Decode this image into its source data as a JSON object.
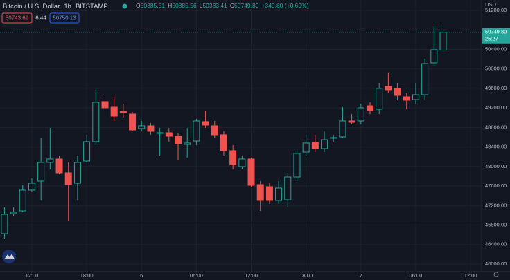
{
  "header": {
    "symbol": "Bitcoin / U.S. Dollar",
    "interval": "1h",
    "exchange": "BITSTAMP",
    "ohlc": [
      {
        "key": "O",
        "value": "50385.51"
      },
      {
        "key": "H",
        "value": "50885.56"
      },
      {
        "key": "L",
        "value": "50383.41"
      },
      {
        "key": "C",
        "value": "50749.80"
      }
    ],
    "change": "+349.80 (+0.69%)",
    "sell": "50743.69",
    "spread": "6.44",
    "buy": "50750.13"
  },
  "chart_data": {
    "type": "candlestick",
    "categories": [
      null,
      null,
      null,
      "12:00",
      null,
      null,
      null,
      null,
      null,
      "18:00",
      null,
      null,
      null,
      null,
      null,
      "6",
      null,
      null,
      null,
      null,
      null,
      "06:00",
      null,
      null,
      null,
      null,
      null,
      "12:00",
      null,
      null,
      null,
      null,
      null,
      "18:00",
      null,
      null,
      null,
      null,
      null,
      "7",
      null,
      null,
      null,
      null,
      null,
      "06:00",
      null,
      null,
      null,
      null,
      null,
      "12:00"
    ],
    "open": [
      46623,
      47034,
      47091,
      47516,
      47700,
      48083,
      48154,
      47870,
      47658,
      48111,
      48508,
      49330,
      49216,
      49131,
      49075,
      48777,
      48834,
      48678,
      48692,
      48621,
      48451,
      48522,
      48919,
      48834,
      48650,
      48324,
      47998,
      48154,
      47629,
      47587,
      47304,
      47318,
      47785,
      48295,
      48494,
      48366,
      48579,
      48607,
      48933,
      48933,
      49245,
      49174,
      49641,
      49599,
      49429,
      49372,
      49471,
      50123,
      50385.51,
      null,
      null,
      null
    ],
    "high": [
      47162,
      47162,
      47615,
      47757,
      48579,
      48791,
      48224,
      48083,
      48224,
      48650,
      49571,
      49471,
      49429,
      49287,
      49117,
      48933,
      48890,
      48791,
      48791,
      48678,
      48791,
      48975,
      49145,
      48933,
      48720,
      48437,
      48224,
      48182,
      47700,
      47658,
      47700,
      47870,
      48324,
      48650,
      48650,
      48720,
      48650,
      49216,
      49075,
      49287,
      49316,
      49712,
      49925,
      49712,
      49500,
      49712,
      50208,
      50874,
      50885.56,
      null,
      null,
      null
    ],
    "low": [
      46524,
      46992,
      47063,
      47474,
      47304,
      47941,
      47842,
      46878,
      47304,
      48083,
      48437,
      49145,
      48933,
      49004,
      48720,
      48720,
      48650,
      48224,
      48508,
      48125,
      48182,
      48437,
      48791,
      48579,
      48224,
      47941,
      47941,
      47587,
      47091,
      47233,
      47233,
      47162,
      47700,
      48224,
      48295,
      48295,
      48508,
      48579,
      48862,
      48862,
      49075,
      49075,
      49500,
      49358,
      49174,
      49287,
      49358,
      50066,
      50383.41,
      null,
      null,
      null
    ],
    "close": [
      47020,
      47063,
      47516,
      47658,
      48083,
      48154,
      47870,
      47629,
      48083,
      48508,
      49316,
      49202,
      49032,
      49103,
      48749,
      48834,
      48720,
      48692,
      48621,
      48465,
      48480,
      48933,
      48848,
      48650,
      48324,
      48040,
      48154,
      47615,
      47304,
      47304,
      47559,
      47785,
      48267,
      48480,
      48366,
      48550,
      48593,
      48933,
      48905,
      49202,
      49145,
      49599,
      49571,
      49457,
      49358,
      49471,
      50109,
      50392,
      50749.8,
      null,
      null,
      null
    ],
    "up_color": "#26a69a",
    "down_color": "#ef5350",
    "ylim": [
      45844,
      51412
    ],
    "yticks": [
      {
        "value": 46000,
        "label": "46000.00"
      },
      {
        "value": 46400,
        "label": "46400.00"
      },
      {
        "value": 46800,
        "label": "46800.00"
      },
      {
        "value": 47200,
        "label": "47200.00"
      },
      {
        "value": 47600,
        "label": "47600.00"
      },
      {
        "value": 48000,
        "label": "48000.00"
      },
      {
        "value": 48400,
        "label": "48400.00"
      },
      {
        "value": 48800,
        "label": "48800.00"
      },
      {
        "value": 49200,
        "label": "49200.00"
      },
      {
        "value": 49600,
        "label": "49600.00"
      },
      {
        "value": 50000,
        "label": "50000.00"
      },
      {
        "value": 50400,
        "label": "50400.00"
      },
      {
        "value": 50800,
        "label": "50800.00"
      },
      {
        "value": 51200,
        "label": "51200.00"
      }
    ],
    "y_axis_label": "USD",
    "last_price": {
      "value": 50749.8,
      "label": "50749.80",
      "countdown": "25:27"
    },
    "grid": true
  }
}
